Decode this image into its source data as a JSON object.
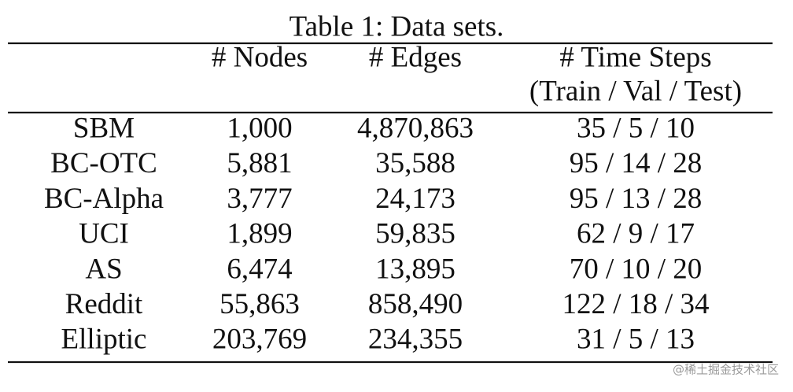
{
  "title": "Table 1: Data sets.",
  "table": {
    "header": {
      "nodes": "# Nodes",
      "edges": "# Edges",
      "time_steps": "# Time Steps",
      "time_steps_sub": "(Train / Val / Test)"
    },
    "rows": [
      [
        "SBM",
        "1,000",
        "4,870,863",
        "35 / 5 / 10"
      ],
      [
        "BC-OTC",
        "5,881",
        "35,588",
        "95 / 14 / 28"
      ],
      [
        "BC-Alpha",
        "3,777",
        "24,173",
        "95 / 13 / 28"
      ],
      [
        "UCI",
        "1,899",
        "59,835",
        "62 / 9 / 17"
      ],
      [
        "AS",
        "6,474",
        "13,895",
        "70 / 10 / 20"
      ],
      [
        "Reddit",
        "55,863",
        "858,490",
        "122 / 18 / 34"
      ],
      [
        "Elliptic",
        "203,769",
        "234,355",
        "31 / 5 / 13"
      ]
    ]
  },
  "watermark": "@稀土掘金技术社区"
}
